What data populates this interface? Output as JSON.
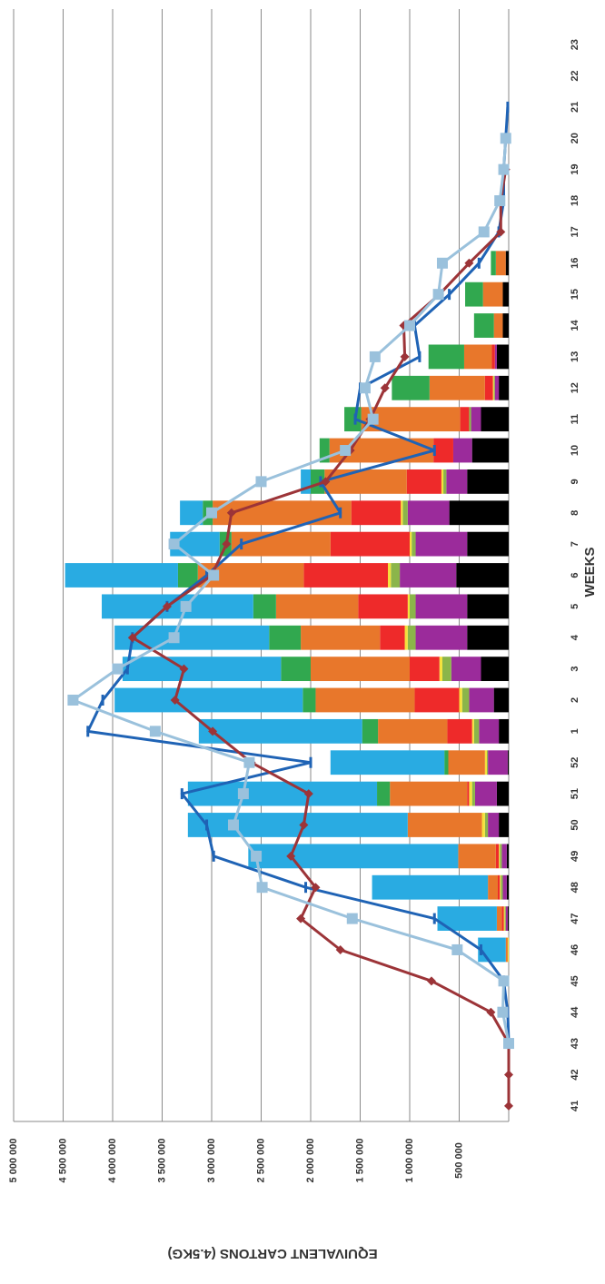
{
  "chart_data": {
    "type": "bar",
    "orientation": "rotated 90 degrees clockwise (value axis runs right-to-left)",
    "title": "",
    "xlabel": "WEEKS",
    "ylabel": "EQUIVALENT CARTONS (4.5KG)",
    "ylim": [
      0,
      5000000
    ],
    "yticks": [
      500000,
      1000000,
      1500000,
      2000000,
      2500000,
      3000000,
      3500000,
      4000000,
      4500000,
      5000000
    ],
    "ytick_labels": [
      "500 000",
      "1 000 000",
      "1 500 000",
      "2 000 000",
      "2 500 000",
      "3 000 000",
      "3 500 000",
      "4 000 000",
      "4 500 000",
      "5 000 000"
    ],
    "categories": [
      "41",
      "42",
      "43",
      "44",
      "45",
      "46",
      "47",
      "48",
      "49",
      "50",
      "51",
      "52",
      "1",
      "2",
      "3",
      "4",
      "5",
      "6",
      "7",
      "8",
      "9",
      "10",
      "11",
      "12",
      "13",
      "14",
      "15",
      "16",
      "17",
      "18",
      "19",
      "20",
      "21",
      "22",
      "23"
    ],
    "grid": true,
    "stacked_series": [
      {
        "color": "#000000",
        "values": [
          0,
          0,
          0,
          0,
          0,
          0,
          10000,
          20000,
          20000,
          100000,
          120000,
          10000,
          100000,
          150000,
          280000,
          420000,
          420000,
          530000,
          420000,
          600000,
          420000,
          370000,
          280000,
          100000,
          120000,
          60000,
          60000,
          30000,
          0,
          0,
          0,
          0,
          0,
          0,
          0
        ]
      },
      {
        "color": "#9b2b9b",
        "values": [
          0,
          0,
          0,
          0,
          0,
          0,
          20000,
          40000,
          50000,
          110000,
          220000,
          200000,
          200000,
          250000,
          300000,
          520000,
          520000,
          570000,
          520000,
          420000,
          210000,
          190000,
          100000,
          40000,
          20000,
          0,
          0,
          0,
          0,
          0,
          0,
          0,
          0,
          0,
          0
        ]
      },
      {
        "color": "#8bb54a",
        "values": [
          0,
          0,
          0,
          0,
          0,
          0,
          10000,
          20000,
          20000,
          30000,
          30000,
          10000,
          50000,
          70000,
          90000,
          80000,
          60000,
          90000,
          40000,
          50000,
          30000,
          0,
          20000,
          10000,
          0,
          0,
          0,
          0,
          0,
          0,
          0,
          0,
          0,
          0,
          0
        ]
      },
      {
        "color": "#f5e13c",
        "values": [
          0,
          0,
          0,
          0,
          0,
          10000,
          10000,
          10000,
          10000,
          30000,
          30000,
          20000,
          20000,
          30000,
          30000,
          30000,
          20000,
          30000,
          20000,
          20000,
          20000,
          0,
          0,
          10000,
          0,
          0,
          0,
          0,
          0,
          0,
          0,
          0,
          0,
          0,
          0
        ]
      },
      {
        "color": "#ee2a2a",
        "values": [
          0,
          0,
          0,
          0,
          0,
          0,
          20000,
          20000,
          30000,
          0,
          20000,
          0,
          250000,
          450000,
          300000,
          250000,
          500000,
          850000,
          800000,
          500000,
          350000,
          200000,
          90000,
          80000,
          30000,
          0,
          0,
          0,
          0,
          0,
          0,
          0,
          0,
          0,
          0
        ]
      },
      {
        "color": "#e8772b",
        "values": [
          0,
          0,
          0,
          0,
          0,
          20000,
          50000,
          100000,
          380000,
          750000,
          780000,
          370000,
          700000,
          1000000,
          1000000,
          800000,
          830000,
          1070000,
          1000000,
          1400000,
          830000,
          1050000,
          1000000,
          560000,
          280000,
          90000,
          200000,
          100000,
          0,
          0,
          0,
          0,
          0,
          0,
          0
        ]
      },
      {
        "color": "#31a84f",
        "values": [
          0,
          0,
          0,
          0,
          0,
          0,
          0,
          0,
          0,
          0,
          130000,
          40000,
          160000,
          130000,
          300000,
          320000,
          230000,
          200000,
          120000,
          100000,
          140000,
          100000,
          170000,
          380000,
          360000,
          200000,
          180000,
          50000,
          0,
          0,
          0,
          0,
          0,
          0,
          0
        ]
      },
      {
        "color": "#29abe2",
        "values": [
          0,
          0,
          0,
          0,
          0,
          280000,
          600000,
          1170000,
          2120000,
          2220000,
          1910000,
          1150000,
          1650000,
          1900000,
          1600000,
          1560000,
          1530000,
          1140000,
          500000,
          230000,
          100000,
          0,
          0,
          0,
          0,
          0,
          0,
          0,
          0,
          0,
          0,
          0,
          0,
          0,
          0
        ]
      }
    ],
    "line_series": [
      {
        "color": "#1f63b5",
        "marker": "dash",
        "values": [
          null,
          null,
          0,
          10000,
          50000,
          280000,
          750000,
          2050000,
          2980000,
          3050000,
          3300000,
          2000000,
          4250000,
          4100000,
          3850000,
          3800000,
          3450000,
          3050000,
          2700000,
          1700000,
          1900000,
          750000,
          1550000,
          1500000,
          900000,
          950000,
          600000,
          300000,
          100000,
          50000,
          50000,
          30000,
          10000,
          null,
          null
        ]
      },
      {
        "color": "#9c3438",
        "marker": "diamond",
        "values": [
          0,
          0,
          0,
          180000,
          780000,
          1700000,
          2100000,
          1950000,
          2200000,
          2070000,
          2020000,
          2600000,
          2990000,
          3370000,
          3280000,
          3800000,
          3450000,
          3000000,
          2850000,
          2800000,
          1850000,
          1600000,
          1400000,
          1250000,
          1050000,
          1060000,
          700000,
          400000,
          80000,
          80000,
          30000,
          null,
          null,
          null,
          null
        ]
      },
      {
        "color": "#9ac1dc",
        "marker": "square",
        "values": [
          null,
          null,
          0,
          60000,
          50000,
          520000,
          1580000,
          2490000,
          2550000,
          2780000,
          2680000,
          2620000,
          3570000,
          4400000,
          3950000,
          3380000,
          3260000,
          2980000,
          3380000,
          3000000,
          2500000,
          1650000,
          1370000,
          1450000,
          1350000,
          1000000,
          710000,
          670000,
          250000,
          90000,
          50000,
          30000,
          null,
          null,
          null
        ]
      }
    ]
  }
}
